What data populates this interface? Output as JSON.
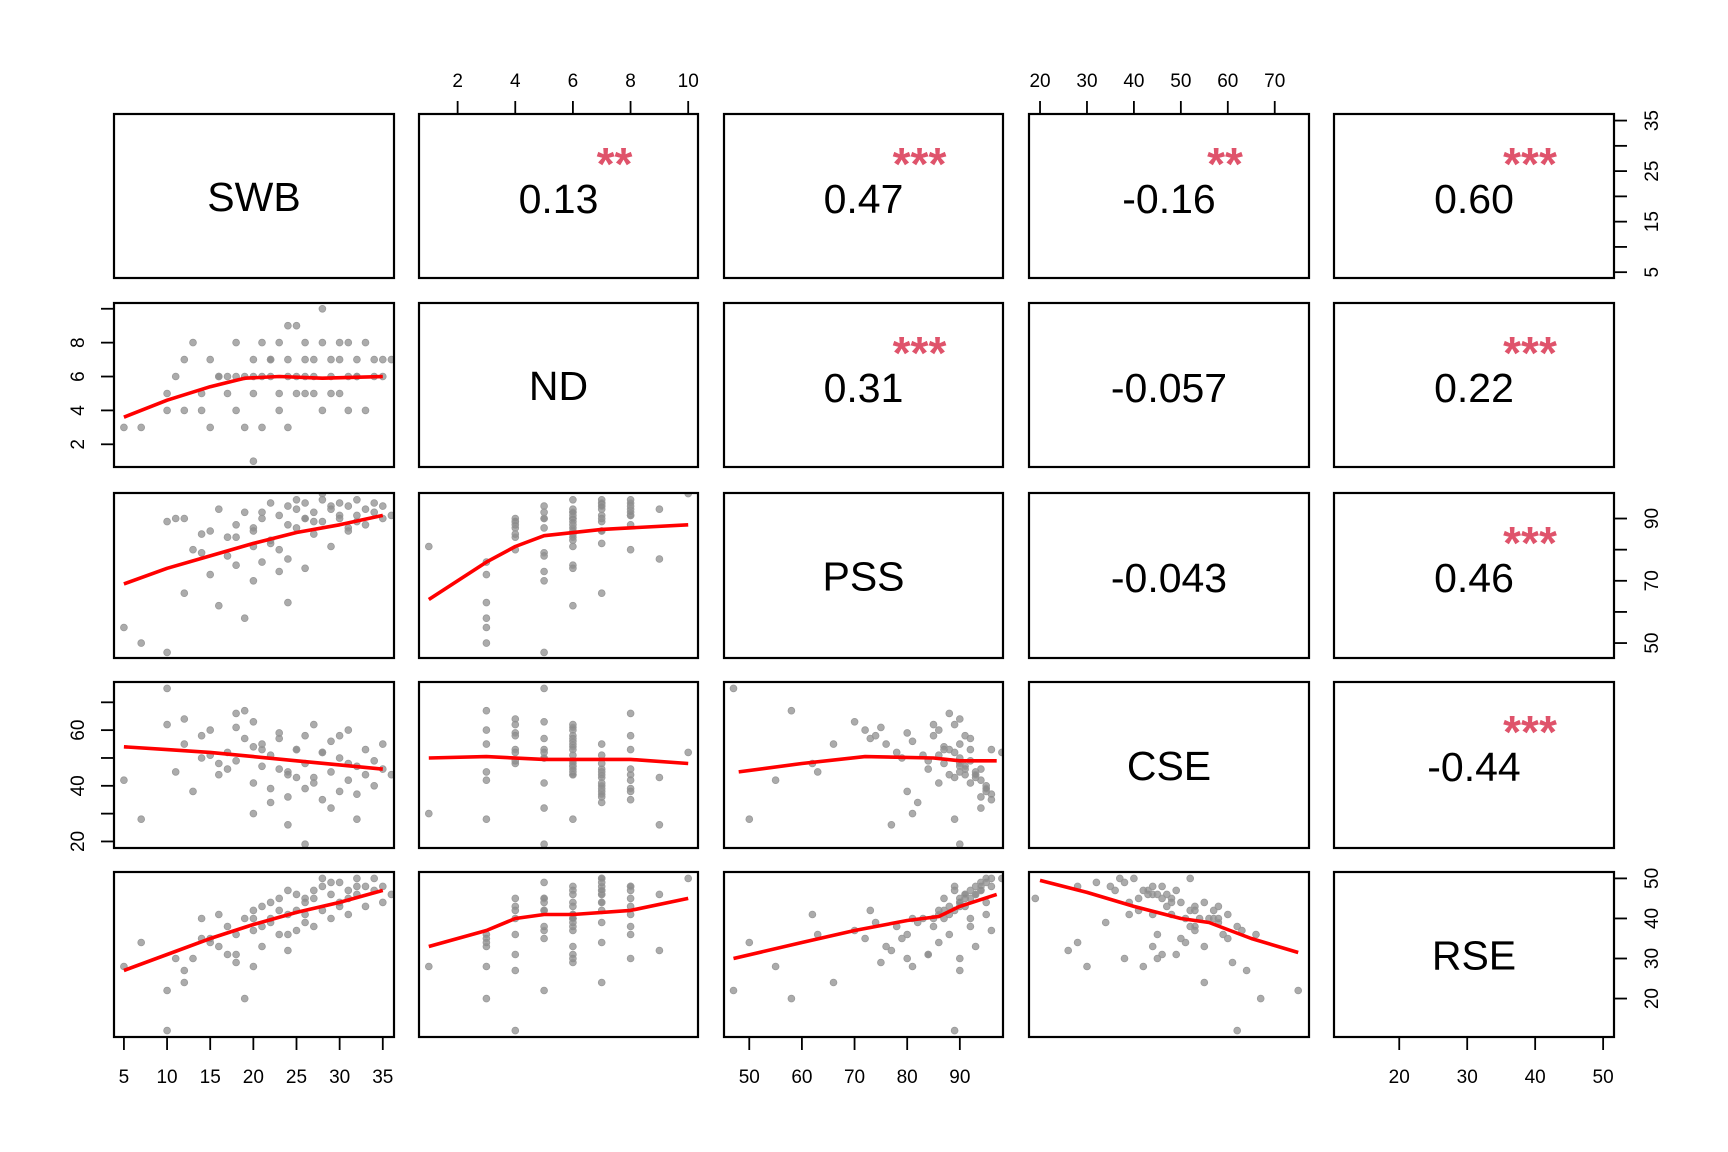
{
  "chart_data": {
    "type": "scatter",
    "subtype": "scatterplot-matrix",
    "variables": [
      {
        "name": "SWB",
        "range": [
          3.85,
          36.3
        ],
        "ticks": [
          5,
          10,
          15,
          20,
          25,
          30,
          35
        ],
        "axis_labels_bottom": [
          "5",
          "10",
          "15",
          "20",
          "25",
          "30",
          "35"
        ],
        "axis_labels_right": [
          "5",
          "15",
          "25",
          "35"
        ]
      },
      {
        "name": "ND",
        "range": [
          0.66,
          10.34
        ],
        "ticks": [
          2,
          4,
          6,
          8,
          10
        ],
        "axis_labels_top": [
          "2",
          "4",
          "6",
          "8",
          "10"
        ],
        "axis_labels_left": [
          "2",
          "4",
          "6",
          "8"
        ]
      },
      {
        "name": "PSS",
        "range": [
          45.2,
          98.2
        ],
        "ticks": [
          50,
          60,
          70,
          80,
          90
        ],
        "axis_labels_bottom": [
          "50",
          "60",
          "70",
          "80",
          "90"
        ],
        "axis_labels_right": [
          "50",
          "70",
          "90"
        ]
      },
      {
        "name": "CSE",
        "range": [
          17.65,
          77.3
        ],
        "ticks": [
          20,
          30,
          40,
          50,
          60,
          70
        ],
        "axis_labels_top": [
          "20",
          "30",
          "40",
          "50",
          "60",
          "70"
        ],
        "axis_labels_left": [
          "20",
          "40",
          "60"
        ]
      },
      {
        "name": "RSE",
        "range": [
          10.4,
          51.6
        ],
        "ticks": [
          20,
          30,
          40,
          50
        ],
        "axis_labels_bottom": [
          "20",
          "30",
          "40",
          "50"
        ],
        "axis_labels_right": [
          "20",
          "30",
          "40",
          "50"
        ]
      }
    ],
    "correlations": [
      {
        "row": 0,
        "col": 1,
        "r": "0.13",
        "stars": "**"
      },
      {
        "row": 0,
        "col": 2,
        "r": "0.47",
        "stars": "***"
      },
      {
        "row": 0,
        "col": 3,
        "r": "-0.16",
        "stars": "**"
      },
      {
        "row": 0,
        "col": 4,
        "r": "0.60",
        "stars": "***"
      },
      {
        "row": 1,
        "col": 2,
        "r": "0.31",
        "stars": "***"
      },
      {
        "row": 1,
        "col": 3,
        "r": "-0.057",
        "stars": ""
      },
      {
        "row": 1,
        "col": 4,
        "r": "0.22",
        "stars": "***"
      },
      {
        "row": 2,
        "col": 3,
        "r": "-0.043",
        "stars": ""
      },
      {
        "row": 2,
        "col": 4,
        "r": "0.46",
        "stars": "***"
      },
      {
        "row": 3,
        "col": 4,
        "r": "-0.44",
        "stars": "***"
      }
    ],
    "observations_columns": [
      "SWB",
      "ND",
      "PSS",
      "CSE",
      "RSE"
    ],
    "observations": [
      [
        5,
        3,
        55,
        42,
        28
      ],
      [
        7,
        3,
        50,
        28,
        34
      ],
      [
        10,
        5,
        47,
        75,
        22
      ],
      [
        10,
        4,
        89,
        62,
        12
      ],
      [
        11,
        6,
        90,
        45,
        30
      ],
      [
        12,
        7,
        66,
        55,
        24
      ],
      [
        13,
        8,
        80,
        38,
        30
      ],
      [
        14,
        4,
        85,
        58,
        40
      ],
      [
        15,
        3,
        72,
        60,
        35
      ],
      [
        16,
        6,
        93,
        44,
        33
      ],
      [
        17,
        5,
        78,
        52,
        38
      ],
      [
        18,
        8,
        88,
        66,
        36
      ],
      [
        18,
        4,
        84,
        49,
        31
      ],
      [
        19,
        6,
        92,
        57,
        40
      ],
      [
        20,
        7,
        86,
        41,
        42
      ],
      [
        20,
        5,
        70,
        63,
        37
      ],
      [
        21,
        6,
        90,
        47,
        43
      ],
      [
        21,
        3,
        76,
        55,
        33
      ],
      [
        22,
        7,
        95,
        39,
        44
      ],
      [
        22,
        6,
        83,
        51,
        40
      ],
      [
        23,
        8,
        91,
        46,
        45
      ],
      [
        23,
        4,
        80,
        59,
        36
      ],
      [
        24,
        6,
        88,
        44,
        41
      ],
      [
        24,
        7,
        94,
        36,
        47
      ],
      [
        25,
        5,
        87,
        53,
        42
      ],
      [
        25,
        9,
        93,
        43,
        46
      ],
      [
        26,
        6,
        74,
        58,
        39
      ],
      [
        26,
        7,
        90,
        48,
        44
      ],
      [
        27,
        5,
        92,
        41,
        45
      ],
      [
        27,
        6,
        85,
        62,
        38
      ],
      [
        28,
        8,
        96,
        35,
        48
      ],
      [
        28,
        4,
        89,
        52,
        42
      ],
      [
        29,
        7,
        93,
        45,
        46
      ],
      [
        29,
        6,
        81,
        56,
        40
      ],
      [
        30,
        7,
        95,
        38,
        49
      ],
      [
        30,
        5,
        90,
        50,
        44
      ],
      [
        31,
        8,
        94,
        42,
        47
      ],
      [
        31,
        6,
        86,
        60,
        41
      ],
      [
        32,
        7,
        96,
        37,
        50
      ],
      [
        32,
        6,
        91,
        47,
        46
      ],
      [
        33,
        8,
        93,
        44,
        48
      ],
      [
        33,
        4,
        88,
        53,
        43
      ],
      [
        34,
        7,
        95,
        40,
        50
      ],
      [
        34,
        6,
        92,
        49,
        47
      ],
      [
        35,
        7,
        94,
        46,
        48
      ],
      [
        35,
        6,
        90,
        55,
        44
      ],
      [
        36,
        7,
        91,
        44,
        46
      ],
      [
        20,
        1,
        81,
        30,
        28
      ],
      [
        16,
        6,
        62,
        48,
        41
      ],
      [
        24,
        9,
        77,
        26,
        32
      ],
      [
        19,
        3,
        58,
        67,
        20
      ],
      [
        26,
        5,
        90,
        19,
        45
      ],
      [
        28,
        10,
        98,
        52,
        50
      ],
      [
        12,
        4,
        90,
        64,
        27
      ],
      [
        22,
        7,
        82,
        34,
        39
      ],
      [
        25,
        6,
        96,
        53,
        37
      ],
      [
        17,
        6,
        84,
        46,
        31
      ],
      [
        30,
        8,
        91,
        58,
        43
      ],
      [
        14,
        5,
        79,
        50,
        35
      ],
      [
        23,
        5,
        73,
        57,
        42
      ],
      [
        27,
        7,
        89,
        43,
        47
      ],
      [
        21,
        8,
        92,
        53,
        38
      ],
      [
        18,
        6,
        75,
        61,
        29
      ],
      [
        29,
        5,
        94,
        32,
        49
      ],
      [
        31,
        4,
        87,
        48,
        45
      ],
      [
        15,
        7,
        86,
        51,
        34
      ],
      [
        26,
        8,
        95,
        39,
        41
      ],
      [
        24,
        3,
        63,
        45,
        36
      ],
      [
        32,
        6,
        89,
        28,
        48
      ],
      [
        20,
        6,
        87,
        54,
        40
      ]
    ],
    "loess": [
      {
        "row": 1,
        "col": 0,
        "points": [
          [
            5,
            3.6
          ],
          [
            10,
            4.6
          ],
          [
            15,
            5.4
          ],
          [
            19,
            5.9
          ],
          [
            23,
            6.0
          ],
          [
            28,
            5.9
          ],
          [
            35,
            6.0
          ]
        ]
      },
      {
        "row": 2,
        "col": 0,
        "points": [
          [
            5,
            69
          ],
          [
            10,
            74
          ],
          [
            15,
            78
          ],
          [
            20,
            82
          ],
          [
            25,
            85.5
          ],
          [
            30,
            88
          ],
          [
            35,
            91
          ]
        ]
      },
      {
        "row": 2,
        "col": 1,
        "points": [
          [
            1,
            64
          ],
          [
            3,
            76
          ],
          [
            4,
            81
          ],
          [
            5,
            84.5
          ],
          [
            7,
            86.5
          ],
          [
            10,
            88
          ]
        ]
      },
      {
        "row": 3,
        "col": 0,
        "points": [
          [
            5,
            54
          ],
          [
            10,
            53
          ],
          [
            15,
            52
          ],
          [
            20,
            50.5
          ],
          [
            25,
            49
          ],
          [
            30,
            47.5
          ],
          [
            35,
            46
          ]
        ]
      },
      {
        "row": 3,
        "col": 1,
        "points": [
          [
            1,
            50
          ],
          [
            3,
            50.5
          ],
          [
            5,
            49.5
          ],
          [
            8,
            49.5
          ],
          [
            10,
            48
          ]
        ]
      },
      {
        "row": 3,
        "col": 2,
        "points": [
          [
            48,
            45
          ],
          [
            60,
            48
          ],
          [
            72,
            50.5
          ],
          [
            85,
            50
          ],
          [
            90,
            49
          ],
          [
            97,
            49
          ]
        ]
      },
      {
        "row": 4,
        "col": 0,
        "points": [
          [
            5,
            27
          ],
          [
            10,
            31
          ],
          [
            15,
            35
          ],
          [
            20,
            38.5
          ],
          [
            25,
            41.5
          ],
          [
            30,
            44
          ],
          [
            35,
            47
          ]
        ]
      },
      {
        "row": 4,
        "col": 1,
        "points": [
          [
            1,
            33
          ],
          [
            3,
            37
          ],
          [
            4,
            40
          ],
          [
            5,
            41
          ],
          [
            6,
            41
          ],
          [
            8,
            42
          ],
          [
            10,
            45
          ]
        ]
      },
      {
        "row": 4,
        "col": 2,
        "points": [
          [
            47,
            30
          ],
          [
            60,
            34
          ],
          [
            70,
            37
          ],
          [
            80,
            39.5
          ],
          [
            86,
            40.5
          ],
          [
            90,
            43
          ],
          [
            97,
            46
          ]
        ]
      },
      {
        "row": 4,
        "col": 3,
        "points": [
          [
            20,
            49.5
          ],
          [
            30,
            46.5
          ],
          [
            40,
            43
          ],
          [
            50,
            40
          ],
          [
            56,
            39
          ],
          [
            65,
            35
          ],
          [
            75,
            31.5
          ]
        ]
      }
    ],
    "colors": {
      "points": "#8a8a8a",
      "loess": "#ff0000",
      "stars": "#DF536B"
    }
  }
}
